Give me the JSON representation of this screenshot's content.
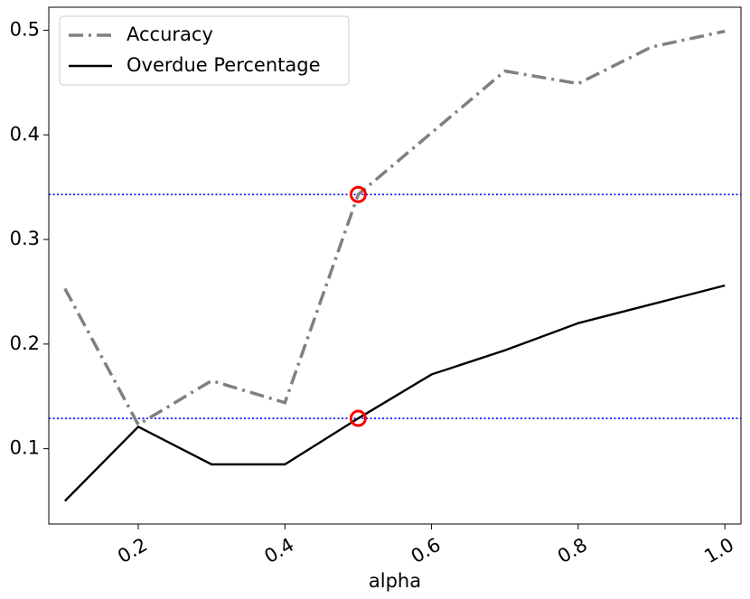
{
  "chart_data": {
    "type": "line",
    "x": [
      0.1,
      0.2,
      0.3,
      0.4,
      0.5,
      0.6,
      0.7,
      0.8,
      0.9,
      1.0
    ],
    "series": [
      {
        "name": "Accuracy",
        "color": "#808080",
        "style": "dashdot",
        "values": [
          0.253,
          0.123,
          0.165,
          0.144,
          0.343,
          0.402,
          0.461,
          0.449,
          0.484,
          0.499
        ]
      },
      {
        "name": "Overdue Percentage",
        "color": "#000000",
        "style": "solid",
        "values": [
          0.05,
          0.121,
          0.085,
          0.085,
          0.129,
          0.171,
          0.194,
          0.22,
          0.238,
          0.256
        ]
      }
    ],
    "hlines": [
      0.343,
      0.129
    ],
    "hline_color": "#0000ff",
    "highlight_points": {
      "x": [
        0.5,
        0.5
      ],
      "y": [
        0.343,
        0.129
      ],
      "color": "#ff0000"
    },
    "xlabel": "alpha",
    "xlim": [
      0.078,
      1.022
    ],
    "xticks": [
      0.2,
      0.4,
      0.6,
      0.8,
      {
        "value": 1,
        "label": "1.0"
      }
    ],
    "ylim": [
      0.028,
      0.522
    ],
    "yticks": [
      0.1,
      0.2,
      0.3,
      0.4,
      0.5
    ],
    "legend": "upper left"
  }
}
